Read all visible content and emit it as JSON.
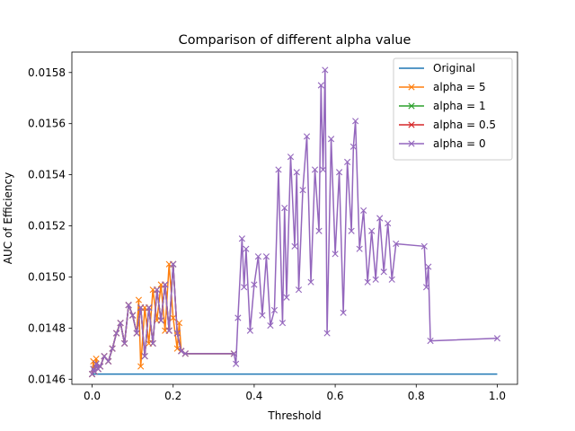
{
  "chart_data": {
    "type": "line",
    "title": "Comparison of different alpha value",
    "xlabel": "Threshold",
    "ylabel": "AUC of Efficiency",
    "xlim": [
      -0.05,
      1.05
    ],
    "ylim": [
      0.01458,
      0.01588
    ],
    "xticks": [
      0.0,
      0.2,
      0.4,
      0.6,
      0.8,
      1.0
    ],
    "xtick_labels": [
      "0.0",
      "0.2",
      "0.4",
      "0.6",
      "0.8",
      "1.0"
    ],
    "yticks": [
      0.0146,
      0.0148,
      0.015,
      0.0152,
      0.0154,
      0.0156,
      0.0158
    ],
    "ytick_labels": [
      "0.0146",
      "0.0148",
      "0.0150",
      "0.0152",
      "0.0154",
      "0.0156",
      "0.0158"
    ],
    "grid": false,
    "legend_position": "top-right",
    "series": [
      {
        "name": "Original",
        "color": "#1f77b4",
        "marker": "none",
        "x": [
          0.0,
          1.0
        ],
        "y": [
          0.01462,
          0.01462
        ]
      },
      {
        "name": "alpha = 5",
        "color": "#ff7f0e",
        "marker": "x",
        "x": [
          0.0,
          0.003,
          0.006,
          0.01,
          0.015,
          0.02,
          0.03,
          0.04,
          0.05,
          0.06,
          0.07,
          0.08,
          0.09,
          0.1,
          0.11,
          0.115,
          0.12,
          0.13,
          0.14,
          0.15,
          0.16,
          0.17,
          0.18,
          0.19,
          0.2,
          0.21,
          0.215,
          0.22,
          0.23,
          0.35
        ],
        "y": [
          0.01462,
          0.01467,
          0.01463,
          0.01468,
          0.01464,
          0.01465,
          0.01469,
          0.01467,
          0.01472,
          0.01478,
          0.01482,
          0.01474,
          0.01489,
          0.01485,
          0.01478,
          0.01491,
          0.01465,
          0.01488,
          0.01474,
          0.01495,
          0.01483,
          0.01497,
          0.01479,
          0.01505,
          0.01484,
          0.01472,
          0.01482,
          0.01471,
          0.0147,
          0.0147
        ]
      },
      {
        "name": "alpha = 1",
        "color": "#2ca02c",
        "marker": "x",
        "x": [
          0.0,
          0.003,
          0.006,
          0.01,
          0.015,
          0.02,
          0.03,
          0.04,
          0.05,
          0.06,
          0.07,
          0.08,
          0.09,
          0.1,
          0.11,
          0.12,
          0.13,
          0.14,
          0.15,
          0.16,
          0.17,
          0.18,
          0.19,
          0.2,
          0.21,
          0.22,
          0.23,
          0.35
        ],
        "y": [
          0.01462,
          0.01464,
          0.01463,
          0.01466,
          0.01464,
          0.01465,
          0.01469,
          0.01467,
          0.01472,
          0.01478,
          0.01482,
          0.01474,
          0.01489,
          0.01485,
          0.01478,
          0.01488,
          0.01469,
          0.01488,
          0.01474,
          0.01495,
          0.01483,
          0.01497,
          0.01479,
          0.01505,
          0.01478,
          0.01471,
          0.0147,
          0.0147
        ]
      },
      {
        "name": "alpha = 0.5",
        "color": "#d62728",
        "marker": "x",
        "x": [
          0.0,
          0.003,
          0.006,
          0.01,
          0.015,
          0.02,
          0.03,
          0.04,
          0.05,
          0.06,
          0.07,
          0.08,
          0.09,
          0.1,
          0.11,
          0.12,
          0.13,
          0.14,
          0.15,
          0.16,
          0.17,
          0.18,
          0.19,
          0.2,
          0.21,
          0.22,
          0.23,
          0.35
        ],
        "y": [
          0.01462,
          0.01464,
          0.01463,
          0.01466,
          0.01464,
          0.01465,
          0.01469,
          0.01467,
          0.01472,
          0.01478,
          0.01482,
          0.01474,
          0.01489,
          0.01485,
          0.01478,
          0.01488,
          0.01469,
          0.01488,
          0.01474,
          0.01495,
          0.01483,
          0.01497,
          0.01479,
          0.01505,
          0.01478,
          0.01471,
          0.0147,
          0.0147
        ]
      },
      {
        "name": "alpha = 0",
        "color": "#9467bd",
        "marker": "x",
        "x": [
          0.0,
          0.003,
          0.006,
          0.01,
          0.015,
          0.02,
          0.03,
          0.04,
          0.05,
          0.06,
          0.07,
          0.08,
          0.09,
          0.1,
          0.11,
          0.12,
          0.13,
          0.14,
          0.15,
          0.16,
          0.17,
          0.18,
          0.19,
          0.2,
          0.21,
          0.22,
          0.23,
          0.35,
          0.355,
          0.36,
          0.37,
          0.375,
          0.38,
          0.39,
          0.4,
          0.41,
          0.42,
          0.43,
          0.44,
          0.45,
          0.46,
          0.47,
          0.475,
          0.48,
          0.49,
          0.5,
          0.505,
          0.51,
          0.52,
          0.53,
          0.54,
          0.55,
          0.56,
          0.565,
          0.57,
          0.575,
          0.58,
          0.59,
          0.6,
          0.61,
          0.62,
          0.63,
          0.64,
          0.645,
          0.65,
          0.66,
          0.67,
          0.68,
          0.69,
          0.7,
          0.71,
          0.72,
          0.73,
          0.74,
          0.75,
          0.82,
          0.825,
          0.83,
          0.835,
          1.0
        ],
        "y": [
          0.01462,
          0.01464,
          0.01463,
          0.01466,
          0.01464,
          0.01465,
          0.01469,
          0.01467,
          0.01472,
          0.01478,
          0.01482,
          0.01474,
          0.01489,
          0.01485,
          0.01478,
          0.01488,
          0.01469,
          0.01488,
          0.01474,
          0.01495,
          0.01483,
          0.01497,
          0.01479,
          0.01505,
          0.01478,
          0.01471,
          0.0147,
          0.0147,
          0.01466,
          0.01484,
          0.01515,
          0.01496,
          0.01511,
          0.01479,
          0.01497,
          0.01508,
          0.01485,
          0.01508,
          0.01481,
          0.01487,
          0.01542,
          0.01482,
          0.01527,
          0.01492,
          0.01547,
          0.01512,
          0.01541,
          0.01495,
          0.01534,
          0.01555,
          0.01498,
          0.01542,
          0.01518,
          0.01575,
          0.01542,
          0.01581,
          0.01478,
          0.01554,
          0.01509,
          0.01541,
          0.01486,
          0.01545,
          0.01518,
          0.01551,
          0.01561,
          0.01511,
          0.01526,
          0.01498,
          0.01518,
          0.01499,
          0.01523,
          0.01502,
          0.01521,
          0.01499,
          0.01513,
          0.01512,
          0.01496,
          0.01504,
          0.01475,
          0.01476
        ]
      }
    ]
  }
}
